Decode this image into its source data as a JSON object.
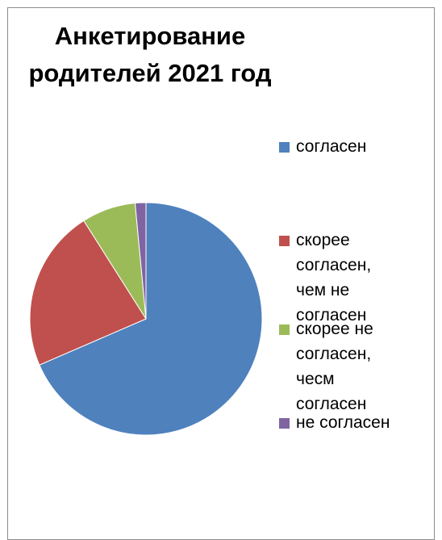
{
  "chart_data": {
    "type": "pie",
    "title_lines": [
      "Анкетирование",
      "родителей 2021 год"
    ],
    "categories": [
      "согласен",
      "скорее согласен, чем не согласен",
      "скорее не согласен, чесм согласен",
      "не согласен"
    ],
    "values": [
      68.5,
      22.5,
      7.5,
      1.5
    ],
    "colors": [
      "#4f81bd",
      "#c0504d",
      "#9bbb59",
      "#8064a2"
    ],
    "legend_position": "right"
  },
  "legend": {
    "items": [
      {
        "lines": [
          "согласен"
        ]
      },
      {
        "lines": [
          "скорее",
          "согласен,",
          "чем не",
          "согласен"
        ]
      },
      {
        "lines": [
          "скорее не",
          "согласен,",
          "чесм",
          "согласен"
        ]
      },
      {
        "lines": [
          "не согласен"
        ]
      }
    ]
  }
}
